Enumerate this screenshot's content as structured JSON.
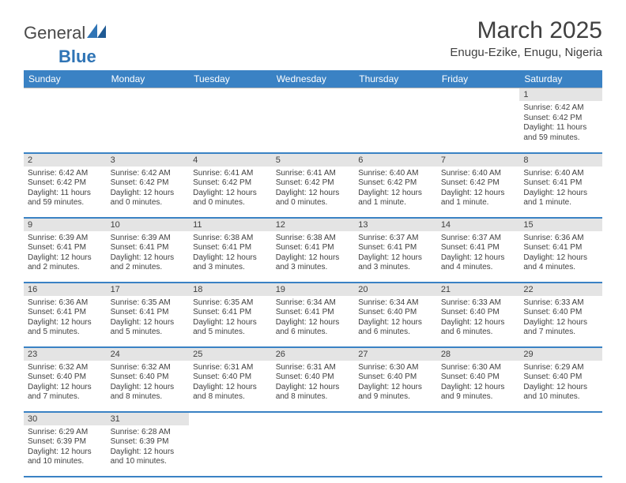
{
  "logo": {
    "part1": "General",
    "part2": "Blue"
  },
  "title": "March 2025",
  "location": "Enugu-Ezike, Enugu, Nigeria",
  "colors": {
    "header_bg": "#3a82c4",
    "header_text": "#ffffff",
    "daynum_bg": "#e4e4e4",
    "row_divider": "#3a82c4"
  },
  "weekdays": [
    "Sunday",
    "Monday",
    "Tuesday",
    "Wednesday",
    "Thursday",
    "Friday",
    "Saturday"
  ],
  "weeks": [
    [
      null,
      null,
      null,
      null,
      null,
      null,
      {
        "d": "1",
        "sr": "6:42 AM",
        "ss": "6:42 PM",
        "dl": "11 hours and 59 minutes."
      }
    ],
    [
      {
        "d": "2",
        "sr": "6:42 AM",
        "ss": "6:42 PM",
        "dl": "11 hours and 59 minutes."
      },
      {
        "d": "3",
        "sr": "6:42 AM",
        "ss": "6:42 PM",
        "dl": "12 hours and 0 minutes."
      },
      {
        "d": "4",
        "sr": "6:41 AM",
        "ss": "6:42 PM",
        "dl": "12 hours and 0 minutes."
      },
      {
        "d": "5",
        "sr": "6:41 AM",
        "ss": "6:42 PM",
        "dl": "12 hours and 0 minutes."
      },
      {
        "d": "6",
        "sr": "6:40 AM",
        "ss": "6:42 PM",
        "dl": "12 hours and 1 minute."
      },
      {
        "d": "7",
        "sr": "6:40 AM",
        "ss": "6:42 PM",
        "dl": "12 hours and 1 minute."
      },
      {
        "d": "8",
        "sr": "6:40 AM",
        "ss": "6:41 PM",
        "dl": "12 hours and 1 minute."
      }
    ],
    [
      {
        "d": "9",
        "sr": "6:39 AM",
        "ss": "6:41 PM",
        "dl": "12 hours and 2 minutes."
      },
      {
        "d": "10",
        "sr": "6:39 AM",
        "ss": "6:41 PM",
        "dl": "12 hours and 2 minutes."
      },
      {
        "d": "11",
        "sr": "6:38 AM",
        "ss": "6:41 PM",
        "dl": "12 hours and 3 minutes."
      },
      {
        "d": "12",
        "sr": "6:38 AM",
        "ss": "6:41 PM",
        "dl": "12 hours and 3 minutes."
      },
      {
        "d": "13",
        "sr": "6:37 AM",
        "ss": "6:41 PM",
        "dl": "12 hours and 3 minutes."
      },
      {
        "d": "14",
        "sr": "6:37 AM",
        "ss": "6:41 PM",
        "dl": "12 hours and 4 minutes."
      },
      {
        "d": "15",
        "sr": "6:36 AM",
        "ss": "6:41 PM",
        "dl": "12 hours and 4 minutes."
      }
    ],
    [
      {
        "d": "16",
        "sr": "6:36 AM",
        "ss": "6:41 PM",
        "dl": "12 hours and 5 minutes."
      },
      {
        "d": "17",
        "sr": "6:35 AM",
        "ss": "6:41 PM",
        "dl": "12 hours and 5 minutes."
      },
      {
        "d": "18",
        "sr": "6:35 AM",
        "ss": "6:41 PM",
        "dl": "12 hours and 5 minutes."
      },
      {
        "d": "19",
        "sr": "6:34 AM",
        "ss": "6:41 PM",
        "dl": "12 hours and 6 minutes."
      },
      {
        "d": "20",
        "sr": "6:34 AM",
        "ss": "6:40 PM",
        "dl": "12 hours and 6 minutes."
      },
      {
        "d": "21",
        "sr": "6:33 AM",
        "ss": "6:40 PM",
        "dl": "12 hours and 6 minutes."
      },
      {
        "d": "22",
        "sr": "6:33 AM",
        "ss": "6:40 PM",
        "dl": "12 hours and 7 minutes."
      }
    ],
    [
      {
        "d": "23",
        "sr": "6:32 AM",
        "ss": "6:40 PM",
        "dl": "12 hours and 7 minutes."
      },
      {
        "d": "24",
        "sr": "6:32 AM",
        "ss": "6:40 PM",
        "dl": "12 hours and 8 minutes."
      },
      {
        "d": "25",
        "sr": "6:31 AM",
        "ss": "6:40 PM",
        "dl": "12 hours and 8 minutes."
      },
      {
        "d": "26",
        "sr": "6:31 AM",
        "ss": "6:40 PM",
        "dl": "12 hours and 8 minutes."
      },
      {
        "d": "27",
        "sr": "6:30 AM",
        "ss": "6:40 PM",
        "dl": "12 hours and 9 minutes."
      },
      {
        "d": "28",
        "sr": "6:30 AM",
        "ss": "6:40 PM",
        "dl": "12 hours and 9 minutes."
      },
      {
        "d": "29",
        "sr": "6:29 AM",
        "ss": "6:40 PM",
        "dl": "12 hours and 10 minutes."
      }
    ],
    [
      {
        "d": "30",
        "sr": "6:29 AM",
        "ss": "6:39 PM",
        "dl": "12 hours and 10 minutes."
      },
      {
        "d": "31",
        "sr": "6:28 AM",
        "ss": "6:39 PM",
        "dl": "12 hours and 10 minutes."
      },
      null,
      null,
      null,
      null,
      null
    ]
  ],
  "labels": {
    "sunrise": "Sunrise: ",
    "sunset": "Sunset: ",
    "daylight": "Daylight: "
  }
}
